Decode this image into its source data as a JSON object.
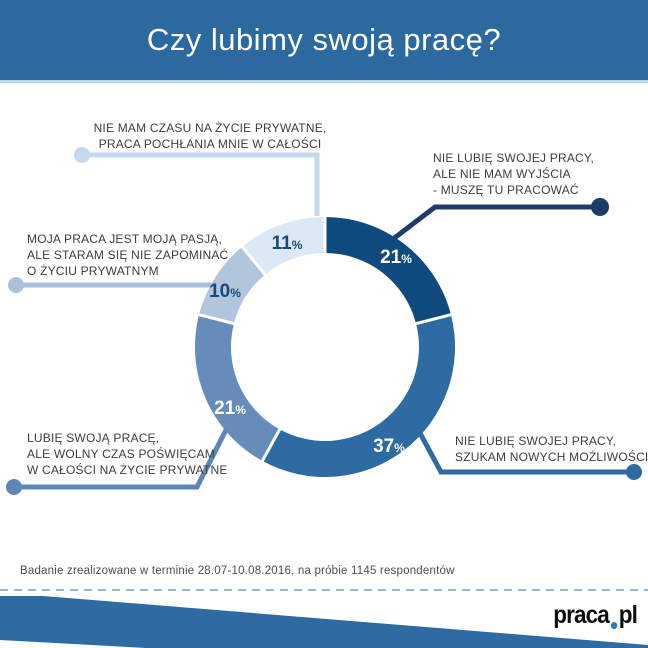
{
  "header": {
    "title": "Czy lubimy swoją pracę?",
    "bg_color": "#2c699f",
    "border_color": "#bcd9ea"
  },
  "chart_data": {
    "type": "pie",
    "variant": "donut",
    "title": "Czy lubimy swoją pracę?",
    "unit": "%",
    "legend_position": "callouts-around-chart",
    "segments": [
      {
        "label": "Nie lubię swojej pracy, ale nie mam wyjścia - muszę tu pracować",
        "value": 21,
        "color": "#0e4a7e",
        "connector_color": "#1d3d68",
        "pct_text_color": "#ffffff"
      },
      {
        "label": "Nie lubię swojej pracy, szukam nowych możliwości",
        "value": 37,
        "color": "#2d6ba2",
        "connector_color": "#2d6ba2",
        "pct_text_color": "#ffffff"
      },
      {
        "label": "Lubię swoją pracę, ale wolny czas poświęcam w całości na życie prywatne",
        "value": 21,
        "color": "#668dba",
        "connector_color": "#5d87b6",
        "pct_text_color": "#ffffff"
      },
      {
        "label": "Moja praca jest moją pasją, ale staram się nie zapominać o życiu prywatnym",
        "value": 10,
        "color": "#b1c5dd",
        "connector_color": "#abc1da",
        "pct_text_color": "#17497c"
      },
      {
        "label": "Nie mam czasu na życie prywatne, praca pochłania mnie w całości",
        "value": 11,
        "color": "#dbe8f6",
        "connector_color": "#c3d9ee",
        "pct_text_color": "#17497c"
      }
    ]
  },
  "callouts": {
    "top_left": {
      "lines": [
        "NIE MAM CZASU NA ŻYCIE PRYWATNE,",
        "PRACA POCHŁANIA MNIE W CAŁOŚCI"
      ]
    },
    "top_right": {
      "lines": [
        "NIE LUBIĘ SWOJEJ PRACY,",
        "ALE NIE MAM WYJŚCIA",
        "- MUSZĘ TU PRACOWAĆ"
      ]
    },
    "mid_left": {
      "lines": [
        "MOJA PRACA JEST MOJĄ PASJĄ,",
        "ALE STARAM SIĘ NIE ZAPOMINAĆ",
        "O ŻYCIU PRYWATNYM"
      ]
    },
    "bottom_left": {
      "lines": [
        "LUBIĘ SWOJĄ PRACĘ,",
        "ALE WOLNY CZAS POŚWIĘCAM",
        "W CAŁOŚCI NA ŻYCIE PRYWATNE"
      ]
    },
    "bottom_right": {
      "lines": [
        "NIE LUBIĘ SWOJEJ PRACY,",
        "SZUKAM NOWYCH MOŻLIWOŚCI"
      ]
    }
  },
  "footer": {
    "note": "Badanie zrealizowane w terminie 28.07-10.08.2016, na próbie 1145 respondentów",
    "dashed_line_color": "#90b6d4",
    "banner_color": "#2d6ba2"
  },
  "brand": {
    "name_first": "praca",
    "name_second": "pl",
    "dot_color": "#2e78b8"
  }
}
